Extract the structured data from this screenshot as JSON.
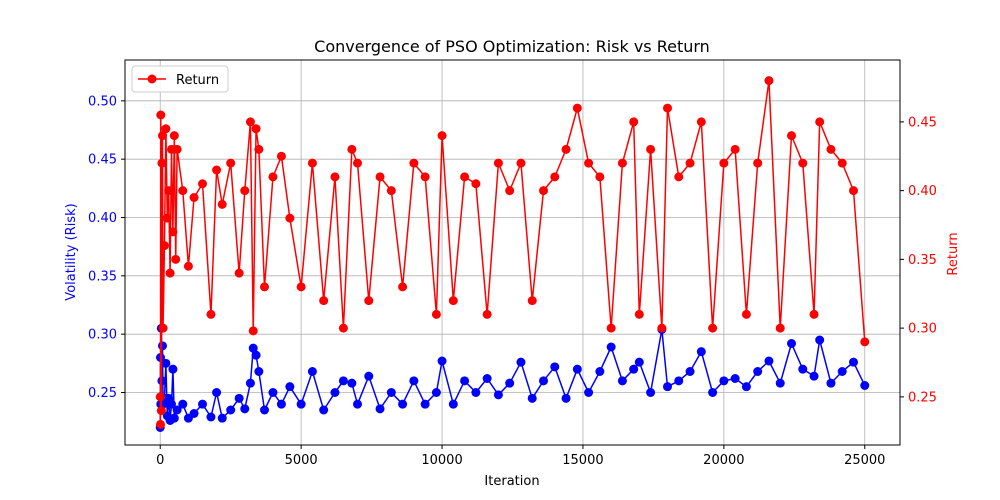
{
  "chart_data": {
    "type": "line",
    "title": "Convergence of PSO Optimization: Risk vs Return",
    "xlabel": "Iteration",
    "ylabel_left": "Volatility (Risk)",
    "ylabel_right": "Return",
    "xlim": [
      -1250,
      26250
    ],
    "ylim_left": [
      0.205,
      0.535
    ],
    "ylim_right": [
      0.215,
      0.495
    ],
    "x_ticks": [
      0,
      5000,
      10000,
      15000,
      20000,
      25000
    ],
    "x_tick_labels": [
      "0",
      "5000",
      "10000",
      "15000",
      "20000",
      "25000"
    ],
    "y_left_ticks": [
      0.25,
      0.3,
      0.35,
      0.4,
      0.45,
      0.5
    ],
    "y_left_tick_labels": [
      "0.25",
      "0.30",
      "0.35",
      "0.40",
      "0.45",
      "0.50"
    ],
    "y_right_ticks": [
      0.25,
      0.3,
      0.35,
      0.4,
      0.45
    ],
    "y_right_tick_labels": [
      "0.25",
      "0.30",
      "0.35",
      "0.40",
      "0.45"
    ],
    "grid": true,
    "legend": {
      "placement": "upper-left",
      "entries": [
        "Return"
      ]
    },
    "series": [
      {
        "axis": "left",
        "color": "#0000ff",
        "x": [
          0,
          10,
          20,
          40,
          60,
          80,
          100,
          150,
          200,
          250,
          300,
          350,
          400,
          450,
          500,
          600,
          800,
          1000,
          1200,
          1500,
          1800,
          2000,
          2200,
          2500,
          2800,
          3000,
          3200,
          3300,
          3400,
          3500,
          3700,
          4000,
          4300,
          4600,
          5000,
          5400,
          5800,
          6200,
          6500,
          6800,
          7000,
          7400,
          7800,
          8200,
          8600,
          9000,
          9400,
          9800,
          10000,
          10400,
          10800,
          11200,
          11600,
          12000,
          12400,
          12800,
          13200,
          13600,
          14000,
          14400,
          14800,
          15200,
          15600,
          16000,
          16400,
          16800,
          17000,
          17400,
          17800,
          18000,
          18400,
          18800,
          19200,
          19600,
          20000,
          20400,
          20800,
          21200,
          21600,
          22000,
          22400,
          22800,
          23200,
          23400,
          23800,
          24200,
          24600,
          25000
        ],
        "y": [
          0.22,
          0.28,
          0.24,
          0.305,
          0.26,
          0.29,
          0.24,
          0.245,
          0.275,
          0.23,
          0.245,
          0.226,
          0.24,
          0.27,
          0.228,
          0.235,
          0.24,
          0.228,
          0.232,
          0.24,
          0.229,
          0.25,
          0.228,
          0.235,
          0.245,
          0.236,
          0.258,
          0.288,
          0.282,
          0.268,
          0.235,
          0.25,
          0.24,
          0.255,
          0.24,
          0.268,
          0.235,
          0.25,
          0.26,
          0.258,
          0.24,
          0.264,
          0.236,
          0.25,
          0.24,
          0.26,
          0.24,
          0.25,
          0.277,
          0.24,
          0.26,
          0.25,
          0.262,
          0.248,
          0.258,
          0.276,
          0.245,
          0.26,
          0.272,
          0.245,
          0.27,
          0.25,
          0.268,
          0.289,
          0.26,
          0.27,
          0.276,
          0.25,
          0.304,
          0.255,
          0.26,
          0.268,
          0.285,
          0.25,
          0.26,
          0.262,
          0.255,
          0.268,
          0.277,
          0.258,
          0.292,
          0.27,
          0.264,
          0.295,
          0.258,
          0.268,
          0.276,
          0.256
        ]
      },
      {
        "axis": "right",
        "color": "#ff0000",
        "name": "Return",
        "x": [
          0,
          10,
          20,
          40,
          60,
          80,
          100,
          150,
          200,
          250,
          300,
          350,
          400,
          450,
          500,
          550,
          600,
          800,
          1000,
          1200,
          1500,
          1800,
          2000,
          2200,
          2500,
          2800,
          3000,
          3200,
          3300,
          3400,
          3500,
          3700,
          4000,
          4300,
          4600,
          5000,
          5400,
          5800,
          6200,
          6500,
          6800,
          7000,
          7400,
          7800,
          8200,
          8600,
          9000,
          9400,
          9800,
          10000,
          10400,
          10800,
          11200,
          11600,
          12000,
          12400,
          12800,
          13200,
          13600,
          14000,
          14400,
          14800,
          15200,
          15600,
          16000,
          16400,
          16800,
          17000,
          17400,
          17800,
          18000,
          18400,
          18800,
          19200,
          19600,
          20000,
          20400,
          20800,
          21200,
          21600,
          22000,
          22400,
          22800,
          23200,
          23400,
          23800,
          24200,
          24600,
          25000
        ],
        "y": [
          0.25,
          0.23,
          0.455,
          0.24,
          0.42,
          0.44,
          0.3,
          0.36,
          0.445,
          0.38,
          0.4,
          0.34,
          0.43,
          0.37,
          0.44,
          0.35,
          0.43,
          0.4,
          0.345,
          0.395,
          0.405,
          0.31,
          0.415,
          0.39,
          0.42,
          0.34,
          0.4,
          0.45,
          0.298,
          0.445,
          0.43,
          0.33,
          0.41,
          0.425,
          0.38,
          0.33,
          0.42,
          0.32,
          0.41,
          0.3,
          0.43,
          0.42,
          0.32,
          0.41,
          0.4,
          0.33,
          0.42,
          0.41,
          0.31,
          0.44,
          0.32,
          0.41,
          0.405,
          0.31,
          0.42,
          0.4,
          0.42,
          0.32,
          0.4,
          0.41,
          0.43,
          0.46,
          0.42,
          0.41,
          0.3,
          0.42,
          0.45,
          0.31,
          0.43,
          0.3,
          0.46,
          0.41,
          0.42,
          0.45,
          0.3,
          0.42,
          0.43,
          0.31,
          0.42,
          0.48,
          0.3,
          0.44,
          0.42,
          0.31,
          0.45,
          0.43,
          0.42,
          0.4,
          0.29
        ]
      }
    ]
  }
}
